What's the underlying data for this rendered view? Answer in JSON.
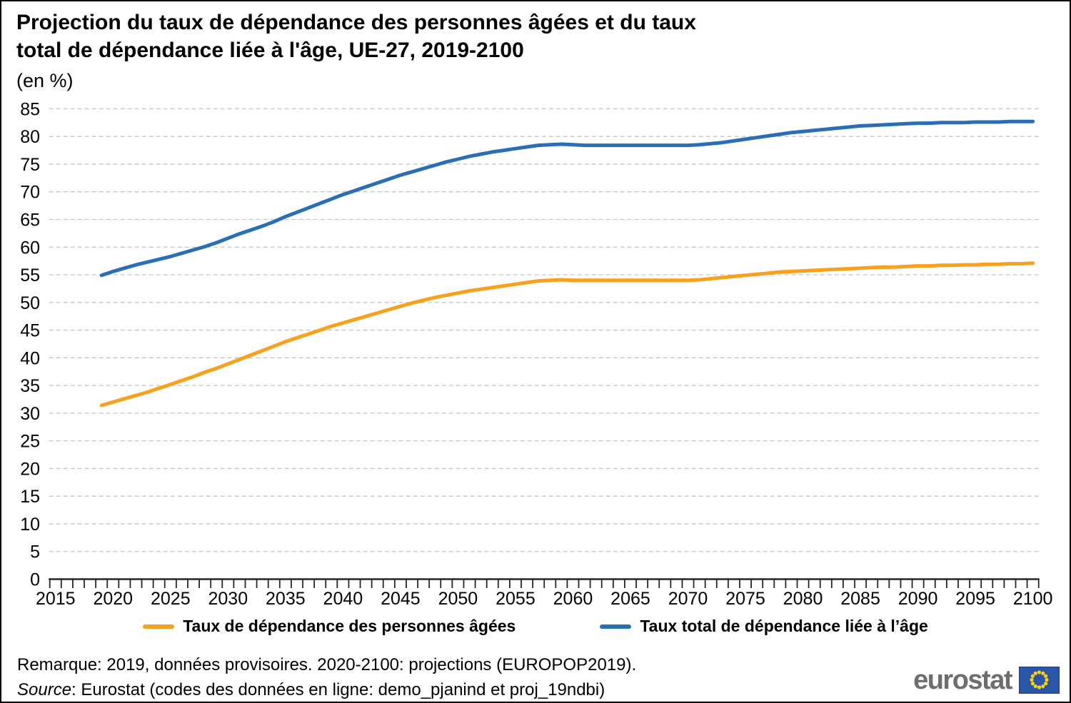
{
  "page": {
    "title_line1": "Projection du taux de dépendance des personnes âgées et du taux",
    "title_line2": "total de dépendance liée à l'âge, UE-27, 2019-2100",
    "subtitle": "(en %)"
  },
  "legend": [
    {
      "label": "Taux de dépendance des personnes âgées",
      "color": "#F7A11F"
    },
    {
      "label": "Taux total de dépendance liée à l’âge",
      "color": "#2A6FB5"
    }
  ],
  "notes": {
    "remark": "Remarque: 2019, données provisoires. 2020-2100: projections (EUROPOP2019).",
    "source_label": "Source",
    "source_text": ": Eurostat (codes des données en ligne: demo_pjanind et proj_19ndbi)"
  },
  "logo": {
    "text": "eurostat"
  },
  "chart_data": {
    "type": "line",
    "title": "Projection du taux de dépendance des personnes âgées et du taux total de dépendance liée à l'âge, UE-27, 2019-2100",
    "unit": "(en %)",
    "grid": "horizontal-dashed",
    "legend_position": "bottom",
    "ylim": [
      0,
      85
    ],
    "y_tick_step": 5,
    "y_ticks": [
      0,
      5,
      10,
      15,
      20,
      25,
      30,
      35,
      40,
      45,
      50,
      55,
      60,
      65,
      70,
      75,
      80,
      85
    ],
    "x_axis_range": [
      2015,
      2100
    ],
    "x_tick_labels": [
      2015,
      2020,
      2025,
      2030,
      2035,
      2040,
      2045,
      2050,
      2055,
      2060,
      2065,
      2070,
      2075,
      2080,
      2085,
      2090,
      2095,
      2100
    ],
    "x": [
      2019,
      2020,
      2021,
      2022,
      2023,
      2024,
      2025,
      2026,
      2027,
      2028,
      2029,
      2030,
      2031,
      2032,
      2033,
      2034,
      2035,
      2036,
      2037,
      2038,
      2039,
      2040,
      2041,
      2042,
      2043,
      2044,
      2045,
      2046,
      2047,
      2048,
      2049,
      2050,
      2051,
      2052,
      2053,
      2054,
      2055,
      2056,
      2057,
      2058,
      2059,
      2060,
      2061,
      2062,
      2063,
      2064,
      2065,
      2066,
      2067,
      2068,
      2069,
      2070,
      2071,
      2072,
      2073,
      2074,
      2075,
      2076,
      2077,
      2078,
      2079,
      2080,
      2081,
      2082,
      2083,
      2084,
      2085,
      2086,
      2087,
      2088,
      2089,
      2090,
      2091,
      2092,
      2093,
      2094,
      2095,
      2096,
      2097,
      2098,
      2099,
      2100
    ],
    "series": [
      {
        "name": "Taux de dépendance des personnes âgées",
        "color": "#F7A11F",
        "values": [
          31.4,
          32.0,
          32.6,
          33.2,
          33.8,
          34.5,
          35.2,
          35.9,
          36.6,
          37.4,
          38.1,
          38.9,
          39.7,
          40.5,
          41.3,
          42.1,
          42.9,
          43.6,
          44.3,
          45.0,
          45.7,
          46.3,
          46.9,
          47.5,
          48.1,
          48.7,
          49.3,
          49.9,
          50.4,
          50.9,
          51.3,
          51.7,
          52.1,
          52.4,
          52.7,
          53.0,
          53.3,
          53.6,
          53.9,
          54.0,
          54.1,
          54.0,
          54.0,
          54.0,
          54.0,
          54.0,
          54.0,
          54.0,
          54.0,
          54.0,
          54.0,
          54.0,
          54.1,
          54.3,
          54.5,
          54.7,
          54.9,
          55.1,
          55.3,
          55.5,
          55.6,
          55.7,
          55.8,
          55.9,
          56.0,
          56.1,
          56.2,
          56.3,
          56.4,
          56.4,
          56.5,
          56.6,
          56.6,
          56.7,
          56.7,
          56.8,
          56.8,
          56.9,
          56.9,
          57.0,
          57.0,
          57.1
        ]
      },
      {
        "name": "Taux total de dépendance liée à l’âge",
        "color": "#2A6FB5",
        "values": [
          54.9,
          55.6,
          56.2,
          56.8,
          57.3,
          57.8,
          58.3,
          58.9,
          59.5,
          60.1,
          60.8,
          61.6,
          62.4,
          63.1,
          63.8,
          64.6,
          65.5,
          66.3,
          67.1,
          67.9,
          68.7,
          69.5,
          70.2,
          70.9,
          71.6,
          72.3,
          73.0,
          73.6,
          74.2,
          74.8,
          75.4,
          75.9,
          76.4,
          76.8,
          77.2,
          77.5,
          77.8,
          78.1,
          78.4,
          78.5,
          78.6,
          78.5,
          78.4,
          78.4,
          78.4,
          78.4,
          78.4,
          78.4,
          78.4,
          78.4,
          78.4,
          78.4,
          78.5,
          78.7,
          78.9,
          79.2,
          79.5,
          79.8,
          80.1,
          80.4,
          80.7,
          80.9,
          81.1,
          81.3,
          81.5,
          81.7,
          81.9,
          82.0,
          82.1,
          82.2,
          82.3,
          82.4,
          82.4,
          82.5,
          82.5,
          82.5,
          82.6,
          82.6,
          82.6,
          82.7,
          82.7,
          82.7
        ]
      }
    ]
  }
}
